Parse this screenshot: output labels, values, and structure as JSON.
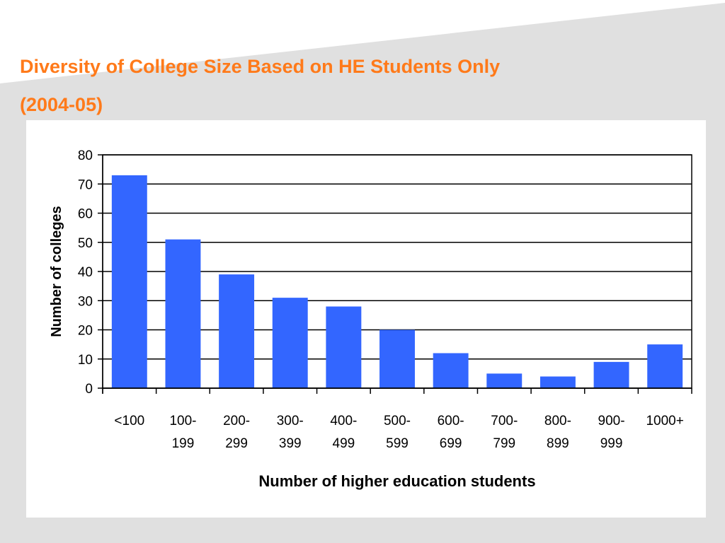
{
  "slide": {
    "title_line1": "Diversity of College Size Based on HE Students Only",
    "title_line2": "(2004-05)",
    "title_color": "#ff7a1a",
    "background_band_color": "#e0e0e0"
  },
  "chart_data": {
    "type": "bar",
    "categories": [
      [
        "<100"
      ],
      [
        "100-",
        "199"
      ],
      [
        "200-",
        "299"
      ],
      [
        "300-",
        "399"
      ],
      [
        "400-",
        "499"
      ],
      [
        "500-",
        "599"
      ],
      [
        "600-",
        "699"
      ],
      [
        "700-",
        "799"
      ],
      [
        "800-",
        "899"
      ],
      [
        "900-",
        "999"
      ],
      [
        "1000+"
      ]
    ],
    "values": [
      73,
      51,
      39,
      31,
      28,
      20,
      12,
      5,
      4,
      9,
      15
    ],
    "xlabel": "Number of higher education students",
    "ylabel": "Number of colleges",
    "ylim": [
      0,
      80
    ],
    "yticks": [
      0,
      10,
      20,
      30,
      40,
      50,
      60,
      70,
      80
    ],
    "bar_color": "#3366ff",
    "grid": true,
    "legend": "none"
  }
}
